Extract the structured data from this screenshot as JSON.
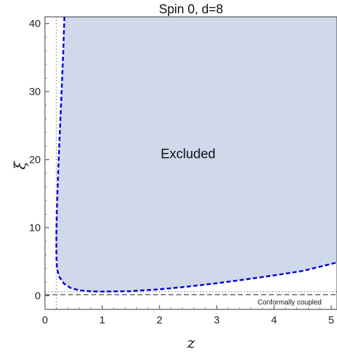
{
  "chart_data": {
    "type": "area",
    "title": "Spin 0, d=8",
    "xlabel": "z",
    "ylabel": "ξ",
    "xlim": [
      0,
      5.1
    ],
    "ylim": [
      -2,
      41
    ],
    "x_ticks": [
      0,
      1,
      2,
      3,
      4,
      5
    ],
    "y_ticks": [
      0,
      10,
      20,
      30,
      40
    ],
    "region_label": "Excluded",
    "region_color": "#cfd9ea",
    "boundary": {
      "color": "#0000dd",
      "style": "dashed",
      "points": [
        [
          0.34,
          41
        ],
        [
          0.32,
          36
        ],
        [
          0.29,
          30
        ],
        [
          0.26,
          24
        ],
        [
          0.23,
          18
        ],
        [
          0.21,
          13
        ],
        [
          0.2,
          9
        ],
        [
          0.2,
          6
        ],
        [
          0.21,
          4
        ],
        [
          0.25,
          2.8
        ],
        [
          0.33,
          1.8
        ],
        [
          0.45,
          1.15
        ],
        [
          0.6,
          0.8
        ],
        [
          0.8,
          0.65
        ],
        [
          1.0,
          0.62
        ],
        [
          1.5,
          0.68
        ],
        [
          2.0,
          0.95
        ],
        [
          2.5,
          1.35
        ],
        [
          3.0,
          1.85
        ],
        [
          3.5,
          2.4
        ],
        [
          4.0,
          3.0
        ],
        [
          4.5,
          3.65
        ],
        [
          5.1,
          4.9
        ]
      ]
    },
    "reference_lines": [
      {
        "orientation": "horizontal",
        "value": 0.1667,
        "style": "dashed",
        "color": "#888888",
        "label": "Conformally coupled"
      },
      {
        "orientation": "horizontal",
        "value": 0.6,
        "style": "dotted",
        "color": "#999999"
      },
      {
        "orientation": "vertical",
        "value": 0.2,
        "style": "dotted",
        "color": "#999999"
      }
    ],
    "grid": false,
    "legend": "none"
  }
}
